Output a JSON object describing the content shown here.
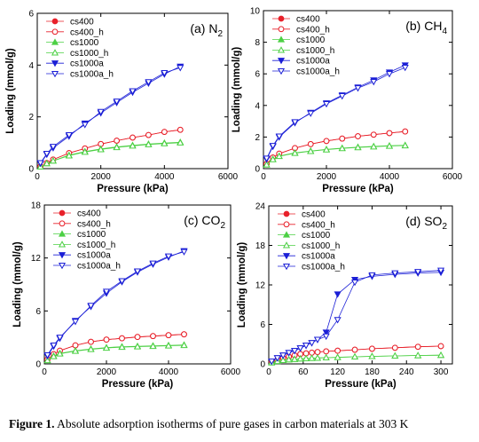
{
  "caption": {
    "label": "Figure 1.",
    "text": "Absolute adsorption isotherms of pure gases in carbon materials at 303 K"
  },
  "colors": {
    "red": "#e8202a",
    "green": "#4cd044",
    "blue": "#1b1fd6"
  },
  "series_styles": [
    {
      "name": "cs400",
      "color": "red",
      "marker": "circle",
      "filled": true
    },
    {
      "name": "cs400_h",
      "color": "red",
      "marker": "circle",
      "filled": false
    },
    {
      "name": "cs1000",
      "color": "green",
      "marker": "triangle-up",
      "filled": true
    },
    {
      "name": "cs1000_h",
      "color": "green",
      "marker": "triangle-up",
      "filled": false
    },
    {
      "name": "cs1000a",
      "color": "blue",
      "marker": "triangle-down",
      "filled": true
    },
    {
      "name": "cs1000a_h",
      "color": "blue",
      "marker": "triangle-down",
      "filled": false
    }
  ],
  "chart_data": [
    {
      "type": "line",
      "panel_label": "(a) N",
      "panel_sub": "2",
      "xlabel": "Pressure (kPa)",
      "ylabel": "Loading (mmol/g)",
      "xlim": [
        0,
        6000
      ],
      "xticks": [
        0,
        2000,
        4000,
        6000
      ],
      "ylim": [
        0,
        6
      ],
      "yticks": [
        0,
        2,
        4,
        6
      ],
      "series": [
        {
          "name": "cs400",
          "x": [
            100,
            300,
            500,
            1000,
            1500,
            2000,
            2500,
            3000,
            3500,
            4000,
            4500
          ],
          "y": [
            0.08,
            0.22,
            0.35,
            0.6,
            0.78,
            0.95,
            1.08,
            1.2,
            1.3,
            1.42,
            1.5
          ]
        },
        {
          "name": "cs400_h",
          "x": [
            100,
            300,
            500,
            1000,
            1500,
            2000,
            2500,
            3000,
            3500,
            4000,
            4500
          ],
          "y": [
            0.08,
            0.22,
            0.35,
            0.6,
            0.78,
            0.95,
            1.08,
            1.2,
            1.3,
            1.42,
            1.5
          ]
        },
        {
          "name": "cs1000",
          "x": [
            100,
            300,
            500,
            1000,
            1500,
            2000,
            2500,
            3000,
            3500,
            4000,
            4500
          ],
          "y": [
            0.07,
            0.2,
            0.3,
            0.52,
            0.66,
            0.76,
            0.84,
            0.9,
            0.95,
            0.99,
            1.02
          ]
        },
        {
          "name": "cs1000_h",
          "x": [
            100,
            300,
            500,
            1000,
            1500,
            2000,
            2500,
            3000,
            3500,
            4000,
            4500
          ],
          "y": [
            0.07,
            0.2,
            0.3,
            0.5,
            0.64,
            0.74,
            0.82,
            0.88,
            0.93,
            0.97,
            1.0
          ]
        },
        {
          "name": "cs1000a",
          "x": [
            100,
            300,
            500,
            1000,
            1500,
            2000,
            2500,
            3000,
            3500,
            4000,
            4500
          ],
          "y": [
            0.2,
            0.55,
            0.8,
            1.25,
            1.75,
            2.15,
            2.55,
            2.95,
            3.3,
            3.65,
            3.95
          ]
        },
        {
          "name": "cs1000a_h",
          "x": [
            100,
            300,
            500,
            1000,
            1500,
            2000,
            2500,
            3000,
            3500,
            4000,
            4500
          ],
          "y": [
            0.22,
            0.58,
            0.85,
            1.3,
            1.7,
            2.2,
            2.6,
            3.0,
            3.35,
            3.7,
            3.9
          ]
        }
      ]
    },
    {
      "type": "line",
      "panel_label": "(b) CH",
      "panel_sub": "4",
      "xlabel": "Pressure (kPa)",
      "ylabel": "Loading (mmol/g)",
      "xlim": [
        0,
        6000
      ],
      "xticks": [
        0,
        2000,
        4000,
        6000
      ],
      "ylim": [
        0,
        10
      ],
      "yticks": [
        0,
        2,
        4,
        6,
        8,
        10
      ],
      "series": [
        {
          "name": "cs400",
          "x": [
            100,
            300,
            500,
            1000,
            1500,
            2000,
            2500,
            3000,
            3500,
            4000,
            4500
          ],
          "y": [
            0.3,
            0.7,
            0.95,
            1.3,
            1.55,
            1.75,
            1.9,
            2.05,
            2.15,
            2.25,
            2.35
          ]
        },
        {
          "name": "cs400_h",
          "x": [
            100,
            300,
            500,
            1000,
            1500,
            2000,
            2500,
            3000,
            3500,
            4000,
            4500
          ],
          "y": [
            0.3,
            0.7,
            0.95,
            1.3,
            1.55,
            1.75,
            1.9,
            2.05,
            2.15,
            2.25,
            2.35
          ]
        },
        {
          "name": "cs1000",
          "x": [
            100,
            300,
            500,
            1000,
            1500,
            2000,
            2500,
            3000,
            3500,
            4000,
            4500
          ],
          "y": [
            0.25,
            0.6,
            0.8,
            1.0,
            1.12,
            1.22,
            1.3,
            1.36,
            1.41,
            1.45,
            1.48
          ]
        },
        {
          "name": "cs1000_h",
          "x": [
            100,
            300,
            500,
            1000,
            1500,
            2000,
            2500,
            3000,
            3500,
            4000,
            4500
          ],
          "y": [
            0.25,
            0.58,
            0.78,
            0.98,
            1.1,
            1.2,
            1.28,
            1.34,
            1.39,
            1.43,
            1.46
          ]
        },
        {
          "name": "cs1000a",
          "x": [
            100,
            300,
            500,
            1000,
            1500,
            2000,
            2500,
            3000,
            3500,
            4000,
            4500
          ],
          "y": [
            0.6,
            1.4,
            2.0,
            2.9,
            3.55,
            4.15,
            4.65,
            5.15,
            5.6,
            6.1,
            6.55
          ]
        },
        {
          "name": "cs1000a_h",
          "x": [
            100,
            300,
            500,
            1000,
            1500,
            2000,
            2500,
            3000,
            3500,
            4000,
            4500
          ],
          "y": [
            0.65,
            1.45,
            2.05,
            2.95,
            3.5,
            4.1,
            4.6,
            5.1,
            5.5,
            6.0,
            6.4
          ]
        }
      ]
    },
    {
      "type": "line",
      "panel_label": "(c) CO",
      "panel_sub": "2",
      "xlabel": "Pressure (kPa)",
      "ylabel": "Loading (mmol/g)",
      "xlim": [
        0,
        6000
      ],
      "xticks": [
        0,
        2000,
        4000,
        6000
      ],
      "ylim": [
        0,
        18
      ],
      "yticks": [
        0,
        6,
        12,
        18
      ],
      "series": [
        {
          "name": "cs400",
          "x": [
            100,
            300,
            500,
            1000,
            1500,
            2000,
            2500,
            3000,
            3500,
            4000,
            4500
          ],
          "y": [
            0.5,
            1.1,
            1.5,
            2.1,
            2.5,
            2.75,
            2.9,
            3.05,
            3.15,
            3.25,
            3.35
          ]
        },
        {
          "name": "cs400_h",
          "x": [
            100,
            300,
            500,
            1000,
            1500,
            2000,
            2500,
            3000,
            3500,
            4000,
            4500
          ],
          "y": [
            0.5,
            1.1,
            1.5,
            2.1,
            2.5,
            2.75,
            2.9,
            3.05,
            3.15,
            3.25,
            3.35
          ]
        },
        {
          "name": "cs1000",
          "x": [
            100,
            300,
            500,
            1000,
            1500,
            2000,
            2500,
            3000,
            3500,
            4000,
            4500
          ],
          "y": [
            0.4,
            0.9,
            1.2,
            1.5,
            1.7,
            1.85,
            1.95,
            2.0,
            2.05,
            2.1,
            2.15
          ]
        },
        {
          "name": "cs1000_h",
          "x": [
            100,
            300,
            500,
            1000,
            1500,
            2000,
            2500,
            3000,
            3500,
            4000,
            4500
          ],
          "y": [
            0.4,
            0.85,
            1.15,
            1.45,
            1.65,
            1.8,
            1.9,
            1.95,
            2.0,
            2.05,
            2.1
          ]
        },
        {
          "name": "cs1000a",
          "x": [
            100,
            300,
            500,
            1000,
            1500,
            2000,
            2500,
            3000,
            3500,
            4000,
            4500
          ],
          "y": [
            0.9,
            2.0,
            2.9,
            4.9,
            6.5,
            8.0,
            9.3,
            10.4,
            11.3,
            12.1,
            12.8
          ]
        },
        {
          "name": "cs1000a_h",
          "x": [
            100,
            300,
            500,
            1000,
            1500,
            2000,
            2500,
            3000,
            3500,
            4000,
            4500
          ],
          "y": [
            1.0,
            2.1,
            3.0,
            4.8,
            6.6,
            8.2,
            9.4,
            10.5,
            11.4,
            12.2,
            12.7
          ]
        }
      ]
    },
    {
      "type": "line",
      "panel_label": "(d) SO",
      "panel_sub": "2",
      "xlabel": "Pressure (kPa)",
      "ylabel": "Loading (mmol/g)",
      "xlim": [
        0,
        320
      ],
      "xticks": [
        0,
        60,
        120,
        180,
        240,
        300
      ],
      "ylim": [
        0,
        24
      ],
      "yticks": [
        0,
        6,
        12,
        18,
        24
      ],
      "series": [
        {
          "name": "cs400",
          "x": [
            5,
            15,
            25,
            35,
            45,
            55,
            65,
            75,
            85,
            100,
            120,
            150,
            180,
            220,
            260,
            300
          ],
          "y": [
            0.3,
            0.6,
            0.9,
            1.1,
            1.3,
            1.5,
            1.6,
            1.7,
            1.8,
            1.9,
            2.0,
            2.15,
            2.3,
            2.45,
            2.6,
            2.7
          ]
        },
        {
          "name": "cs400_h",
          "x": [
            5,
            15,
            25,
            35,
            45,
            55,
            65,
            75,
            85,
            100,
            120,
            150,
            180,
            220,
            260,
            300
          ],
          "y": [
            0.3,
            0.6,
            0.9,
            1.1,
            1.3,
            1.5,
            1.6,
            1.7,
            1.8,
            1.9,
            2.0,
            2.15,
            2.3,
            2.45,
            2.6,
            2.7
          ]
        },
        {
          "name": "cs1000",
          "x": [
            5,
            15,
            25,
            35,
            45,
            55,
            65,
            75,
            85,
            100,
            120,
            150,
            180,
            220,
            260,
            300
          ],
          "y": [
            0.2,
            0.4,
            0.55,
            0.65,
            0.72,
            0.78,
            0.82,
            0.86,
            0.9,
            0.95,
            1.0,
            1.08,
            1.15,
            1.22,
            1.28,
            1.32
          ]
        },
        {
          "name": "cs1000_h",
          "x": [
            5,
            15,
            25,
            35,
            45,
            55,
            65,
            75,
            85,
            100,
            120,
            150,
            180,
            220,
            260,
            300
          ],
          "y": [
            0.2,
            0.4,
            0.55,
            0.65,
            0.72,
            0.78,
            0.82,
            0.86,
            0.9,
            0.95,
            1.0,
            1.08,
            1.15,
            1.22,
            1.28,
            1.32
          ]
        },
        {
          "name": "cs1000a",
          "x": [
            5,
            15,
            25,
            35,
            45,
            55,
            65,
            75,
            85,
            100,
            120,
            150,
            180,
            220,
            260,
            300
          ],
          "y": [
            0.4,
            0.9,
            1.3,
            1.7,
            2.0,
            2.4,
            2.8,
            3.2,
            3.7,
            4.8,
            10.6,
            12.8,
            13.3,
            13.6,
            13.8,
            13.9
          ]
        },
        {
          "name": "cs1000a_h",
          "x": [
            5,
            15,
            25,
            35,
            45,
            55,
            65,
            75,
            85,
            100,
            120,
            150,
            180,
            220,
            260,
            300
          ],
          "y": [
            0.4,
            0.9,
            1.3,
            1.7,
            2.0,
            2.4,
            2.8,
            3.2,
            3.7,
            4.2,
            6.7,
            12.4,
            13.5,
            13.8,
            14.0,
            14.2
          ]
        }
      ]
    }
  ]
}
